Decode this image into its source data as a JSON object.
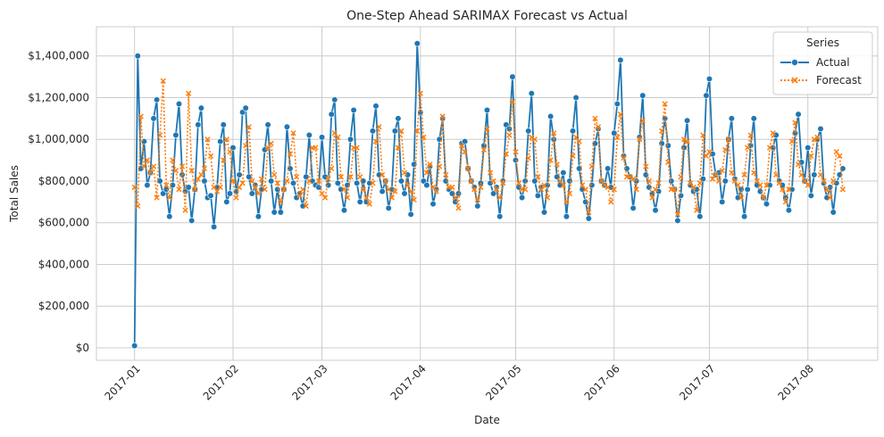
{
  "chart_data": {
    "type": "line",
    "title": "One-Step Ahead SARIMAX Forecast vs Actual",
    "xlabel": "Date",
    "ylabel": "Total Sales",
    "x_range": [
      "2016-12-20",
      "2017-08-23"
    ],
    "x_ticks": [
      "2017-01",
      "2017-02",
      "2017-03",
      "2017-04",
      "2017-05",
      "2017-06",
      "2017-07",
      "2017-08"
    ],
    "ylim": [
      -60000,
      1540000
    ],
    "y_ticks": [
      0,
      200000,
      400000,
      600000,
      800000,
      1000000,
      1200000,
      1400000
    ],
    "y_tick_labels": [
      "$0",
      "$200,000",
      "$400,000",
      "$600,000",
      "$800,000",
      "$1,000,000",
      "$1,200,000",
      "$1,400,000"
    ],
    "grid": true,
    "legend": {
      "title": "Series",
      "position": "top-right"
    },
    "start_date": "2017-01-01",
    "series": [
      {
        "name": "Actual",
        "color": "#1f77b4",
        "marker": "circle",
        "values": [
          10000,
          1400000,
          860000,
          990000,
          780000,
          840000,
          1100000,
          1190000,
          800000,
          740000,
          760000,
          630000,
          780000,
          1020000,
          1170000,
          830000,
          750000,
          770000,
          610000,
          760000,
          1070000,
          1150000,
          800000,
          720000,
          730000,
          580000,
          770000,
          990000,
          1070000,
          700000,
          740000,
          960000,
          750000,
          830000,
          1130000,
          1150000,
          820000,
          740000,
          780000,
          630000,
          760000,
          950000,
          1070000,
          800000,
          650000,
          760000,
          650000,
          760000,
          1060000,
          860000,
          790000,
          720000,
          740000,
          680000,
          820000,
          1020000,
          800000,
          780000,
          770000,
          1010000,
          820000,
          780000,
          1120000,
          1190000,
          790000,
          760000,
          660000,
          780000,
          1000000,
          1140000,
          790000,
          700000,
          800000,
          700000,
          790000,
          1040000,
          1160000,
          830000,
          750000,
          800000,
          670000,
          760000,
          1040000,
          1100000,
          800000,
          740000,
          830000,
          640000,
          880000,
          1460000,
          1130000,
          800000,
          780000,
          870000,
          690000,
          760000,
          1000000,
          1100000,
          800000,
          760000,
          740000,
          700000,
          740000,
          980000,
          990000,
          860000,
          800000,
          770000,
          680000,
          790000,
          970000,
          1140000,
          790000,
          740000,
          770000,
          630000,
          800000,
          1070000,
          1050000,
          1300000,
          900000,
          770000,
          720000,
          800000,
          1040000,
          1220000,
          800000,
          730000,
          770000,
          650000,
          780000,
          1110000,
          1000000,
          820000,
          780000,
          840000,
          630000,
          800000,
          1040000,
          1200000,
          860000,
          760000,
          700000,
          620000,
          780000,
          980000,
          1050000,
          800000,
          780000,
          860000,
          770000,
          1030000,
          1170000,
          1380000,
          920000,
          860000,
          820000,
          670000,
          800000,
          1010000,
          1210000,
          830000,
          770000,
          740000,
          660000,
          750000,
          980000,
          1100000,
          970000,
          800000,
          760000,
          610000,
          730000,
          960000,
          1090000,
          780000,
          750000,
          760000,
          630000,
          810000,
          1210000,
          1290000,
          930000,
          830000,
          840000,
          700000,
          800000,
          1000000,
          1100000,
          810000,
          720000,
          760000,
          630000,
          760000,
          970000,
          1100000,
          780000,
          750000,
          720000,
          690000,
          780000,
          960000,
          1020000,
          800000,
          780000,
          720000,
          660000,
          760000,
          1030000,
          1120000,
          890000,
          800000,
          960000,
          730000,
          830000,
          1000000,
          1050000,
          790000,
          720000,
          770000,
          650000,
          790000,
          830000,
          860000
        ]
      },
      {
        "name": "Forecast",
        "color": "#ff7f0e",
        "marker": "x",
        "values": [
          770000,
          680000,
          1110000,
          870000,
          900000,
          840000,
          870000,
          720000,
          1020000,
          1280000,
          780000,
          720000,
          900000,
          850000,
          760000,
          870000,
          660000,
          1220000,
          850000,
          760000,
          810000,
          830000,
          860000,
          1000000,
          920000,
          770000,
          750000,
          770000,
          900000,
          1000000,
          940000,
          800000,
          720000,
          770000,
          790000,
          970000,
          1060000,
          800000,
          770000,
          740000,
          810000,
          760000,
          960000,
          980000,
          830000,
          790000,
          700000,
          760000,
          800000,
          930000,
          1030000,
          820000,
          730000,
          760000,
          680000,
          800000,
          960000,
          960000,
          800000,
          740000,
          720000,
          810000,
          860000,
          1030000,
          1010000,
          820000,
          760000,
          720000,
          820000,
          960000,
          960000,
          820000,
          760000,
          720000,
          690000,
          790000,
          990000,
          1060000,
          830000,
          800000,
          760000,
          720000,
          750000,
          960000,
          1040000,
          840000,
          780000,
          750000,
          710000,
          1040000,
          1220000,
          1010000,
          840000,
          880000,
          770000,
          750000,
          870000,
          1110000,
          830000,
          770000,
          770000,
          720000,
          670000,
          970000,
          940000,
          860000,
          800000,
          760000,
          710000,
          770000,
          950000,
          1050000,
          840000,
          800000,
          760000,
          720000,
          790000,
          930000,
          1020000,
          1180000,
          940000,
          790000,
          760000,
          760000,
          910000,
          1010000,
          1000000,
          820000,
          760000,
          780000,
          720000,
          900000,
          1030000,
          880000,
          800000,
          780000,
          700000,
          740000,
          920000,
          1010000,
          990000,
          780000,
          760000,
          650000,
          870000,
          1100000,
          1060000,
          800000,
          780000,
          770000,
          700000,
          760000,
          1010000,
          1120000,
          910000,
          820000,
          820000,
          810000,
          760000,
          1000000,
          1090000,
          870000,
          800000,
          720000,
          760000,
          790000,
          1040000,
          1170000,
          890000,
          760000,
          760000,
          640000,
          820000,
          1000000,
          990000,
          790000,
          770000,
          660000,
          790000,
          1020000,
          920000,
          940000,
          810000,
          830000,
          800000,
          850000,
          950000,
          1000000,
          840000,
          800000,
          780000,
          720000,
          830000,
          960000,
          1020000,
          840000,
          800000,
          780000,
          720000,
          780000,
          960000,
          1030000,
          830000,
          790000,
          760000,
          700000,
          760000,
          990000,
          1080000,
          880000,
          830000,
          800000,
          780000,
          920000,
          1000000,
          1010000,
          830000,
          800000,
          760000,
          720000,
          800000,
          940000,
          920000,
          760000
        ]
      }
    ]
  }
}
